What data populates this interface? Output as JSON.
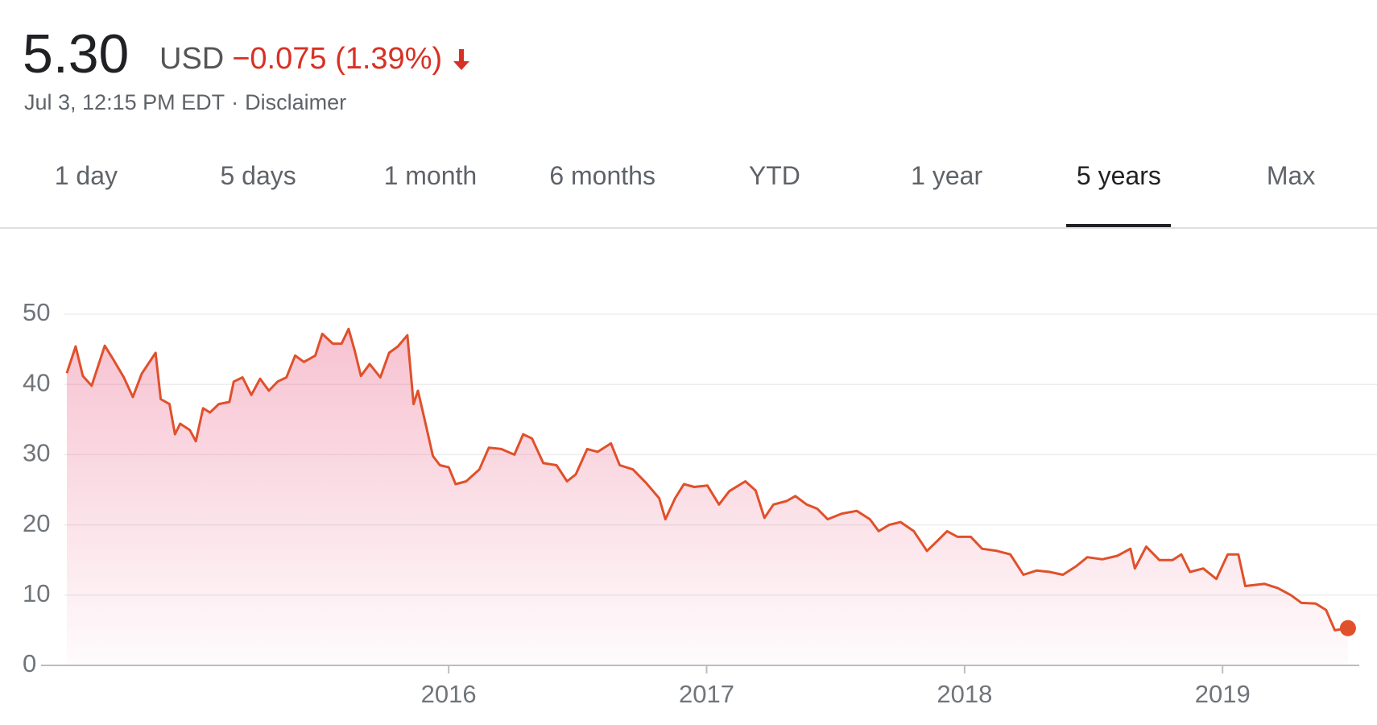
{
  "header": {
    "price": "5.30",
    "currency": "USD",
    "change": "−0.075 (1.39%)",
    "timestamp": "Jul 3, 12:15 PM EDT",
    "separator": "·",
    "disclaimer": "Disclaimer"
  },
  "tabs": [
    "1 day",
    "5 days",
    "1 month",
    "6 months",
    "YTD",
    "1 year",
    "5 years",
    "Max"
  ],
  "chart_data": {
    "type": "line",
    "color": "#e0502a",
    "x": [
      2014.52,
      2014.554,
      2014.582,
      2014.616,
      2014.639,
      2014.667,
      2014.701,
      2014.741,
      2014.776,
      2014.81,
      2014.864,
      2014.884,
      2014.918,
      2014.939,
      2014.959,
      2014.997,
      2015.02,
      2015.048,
      2015.075,
      2015.109,
      2015.15,
      2015.167,
      2015.201,
      2015.235,
      2015.269,
      2015.303,
      2015.337,
      2015.371,
      2015.405,
      2015.439,
      2015.483,
      2015.51,
      2015.551,
      2015.585,
      2015.612,
      2015.636,
      2015.66,
      2015.694,
      2015.735,
      2015.769,
      2015.803,
      2015.84,
      2015.864,
      2015.881,
      2015.908,
      2015.939,
      2015.966,
      2016.0,
      2016.027,
      2016.068,
      2016.119,
      2016.156,
      2016.204,
      2016.255,
      2016.289,
      2016.323,
      2016.367,
      2016.418,
      2016.459,
      2016.493,
      2016.537,
      2016.578,
      2016.629,
      2016.663,
      2016.714,
      2016.765,
      2016.816,
      2016.84,
      2016.878,
      2016.912,
      2016.952,
      2017.003,
      2017.048,
      2017.088,
      2017.15,
      2017.19,
      2017.224,
      2017.259,
      2017.31,
      2017.344,
      2017.388,
      2017.429,
      2017.469,
      2017.524,
      2017.582,
      2017.633,
      2017.667,
      2017.707,
      2017.752,
      2017.803,
      2017.854,
      2017.888,
      2017.932,
      2017.973,
      2018.024,
      2018.068,
      2018.126,
      2018.177,
      2018.228,
      2018.279,
      2018.33,
      2018.381,
      2018.432,
      2018.476,
      2018.534,
      2018.592,
      2018.643,
      2018.66,
      2018.704,
      2018.755,
      2018.806,
      2018.84,
      2018.874,
      2018.925,
      2018.976,
      2019.02,
      2019.061,
      2019.088,
      2019.163,
      2019.214,
      2019.265,
      2019.306,
      2019.361,
      2019.401,
      2019.435,
      2019.486
    ],
    "values": [
      41.6,
      45.4,
      41.2,
      39.8,
      42.4,
      45.5,
      43.5,
      41,
      38.2,
      41.5,
      44.5,
      37.9,
      37.2,
      32.9,
      34.4,
      33.5,
      31.9,
      36.6,
      36,
      37.2,
      37.5,
      40.4,
      41,
      38.5,
      40.8,
      39.1,
      40.4,
      41,
      44.1,
      43.2,
      44.1,
      47.2,
      45.8,
      45.8,
      47.9,
      44.8,
      41.2,
      42.9,
      41,
      44.5,
      45.4,
      47,
      37.2,
      39.1,
      34.8,
      29.8,
      28.5,
      28.2,
      25.8,
      26.2,
      27.9,
      31,
      30.8,
      30,
      32.9,
      32.3,
      28.8,
      28.5,
      26.2,
      27.2,
      30.8,
      30.4,
      31.6,
      28.5,
      27.9,
      26,
      23.8,
      20.8,
      23.8,
      25.8,
      25.4,
      25.6,
      22.9,
      24.8,
      26.2,
      24.9,
      21,
      22.9,
      23.4,
      24.1,
      22.9,
      22.3,
      20.8,
      21.6,
      22,
      20.8,
      19.1,
      20,
      20.4,
      19.1,
      16.3,
      17.5,
      19.1,
      18.3,
      18.3,
      16.6,
      16.3,
      15.8,
      12.9,
      13.5,
      13.3,
      12.9,
      14.1,
      15.4,
      15.1,
      15.6,
      16.6,
      13.8,
      16.9,
      15,
      15,
      15.8,
      13.3,
      13.8,
      12.3,
      15.8,
      15.8,
      11.3,
      11.6,
      11,
      10,
      8.9,
      8.8,
      7.9,
      5,
      5.3
    ],
    "xlim": [
      2014.42,
      2019.53
    ],
    "xticks": [
      2016,
      2017,
      2018,
      2019
    ],
    "ylim": [
      0,
      50
    ],
    "yticks": [
      0,
      10,
      20,
      30,
      40,
      50
    ],
    "grid": true
  }
}
